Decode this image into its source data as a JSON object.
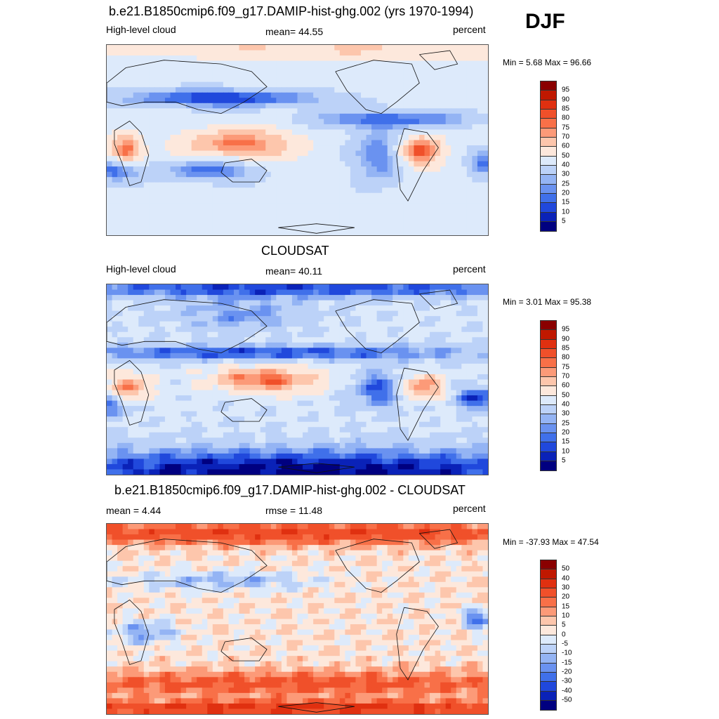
{
  "season": "DJF",
  "panels": [
    {
      "id": "model",
      "title": "b.e21.B1850cmip6.f09_g17.DAMIP-hist-ghg.002 (yrs 1970-1994)",
      "left_label": "High-level cloud",
      "center_label": "mean=  44.55",
      "units": "percent",
      "minmax": "Min =   5.68 Max =  96.66",
      "scale": "abs"
    },
    {
      "id": "obs",
      "title": "CLOUDSAT",
      "left_label": "High-level cloud",
      "center_label": "mean=  40.11",
      "units": "percent",
      "minmax": "Min =   3.01 Max =  95.38",
      "scale": "abs"
    },
    {
      "id": "diff",
      "title": "b.e21.B1850cmip6.f09_g17.DAMIP-hist-ghg.002 - CLOUDSAT",
      "left_label": "mean =   4.44",
      "center_label": "rmse =  11.48",
      "units": "percent",
      "minmax": "Min = -37.93 Max =  47.54",
      "scale": "diff"
    }
  ],
  "colorbars": {
    "abs": {
      "labels": [
        "95",
        "90",
        "85",
        "80",
        "75",
        "70",
        "60",
        "50",
        "40",
        "30",
        "25",
        "20",
        "15",
        "10",
        "5"
      ],
      "colors": [
        "#8a0000",
        "#c01800",
        "#e03010",
        "#f0502a",
        "#f87048",
        "#fc9a78",
        "#fdc6ac",
        "#fde8dc",
        "#ddeafb",
        "#bcd2f8",
        "#94b4f4",
        "#6a92f0",
        "#4070ea",
        "#2048dc",
        "#0a22b8",
        "#000080"
      ]
    },
    "diff": {
      "labels": [
        "50",
        "40",
        "30",
        "20",
        "15",
        "10",
        "5",
        "0",
        "-5",
        "-10",
        "-15",
        "-20",
        "-30",
        "-40",
        "-50"
      ],
      "colors": [
        "#8a0000",
        "#c01800",
        "#e03010",
        "#f0502a",
        "#f87048",
        "#fc9a78",
        "#fdc6ac",
        "#fde8dc",
        "#ddeafb",
        "#bcd2f8",
        "#94b4f4",
        "#6a92f0",
        "#4070ea",
        "#2048dc",
        "#0a22b8",
        "#000080"
      ]
    }
  }
}
